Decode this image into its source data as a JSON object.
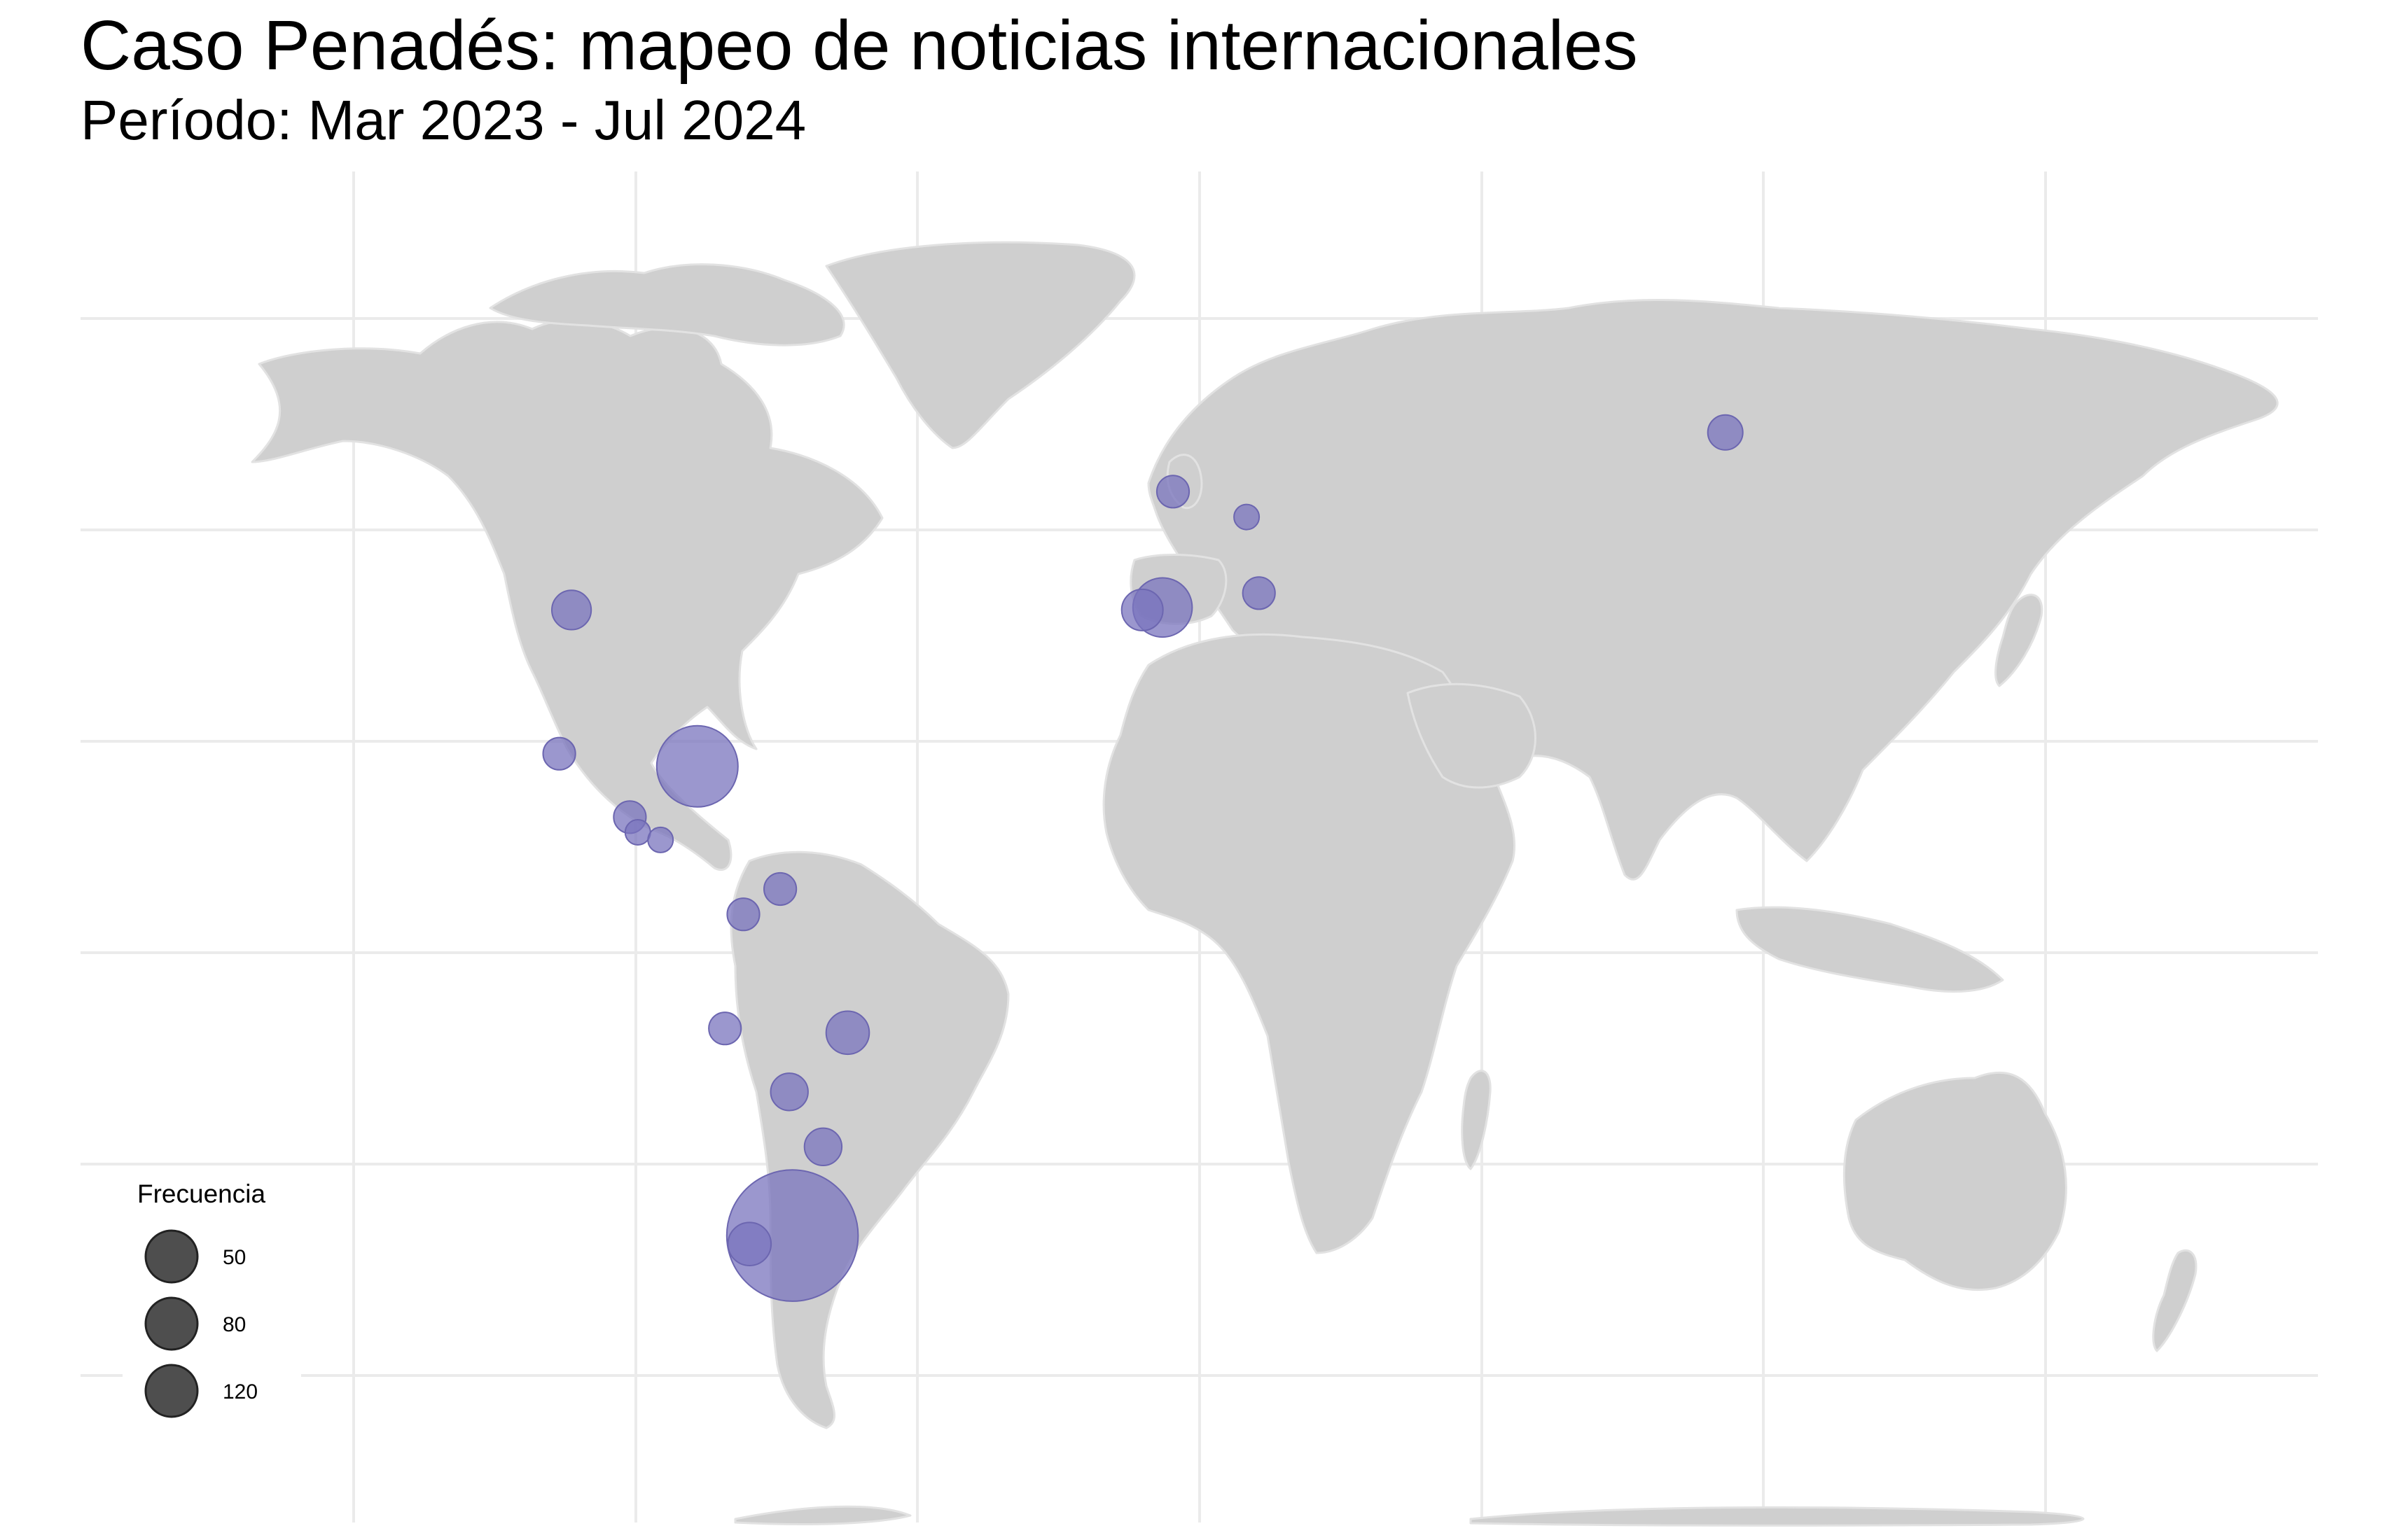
{
  "header": {
    "title": "Caso Penadés: mapeo de noticias internacionales",
    "subtitle": "Período: Mar 2023 - Jul 2024"
  },
  "chart_data": {
    "type": "bubble-map",
    "projection": "equirectangular",
    "lon_range": [
      -180,
      180
    ],
    "lat_range": [
      -58,
      84
    ],
    "grid": true,
    "land_color": "#cfcfcf",
    "bubble_color": "#7a74bd",
    "points": [
      {
        "lon": -100,
        "lat": 40,
        "value": 6
      },
      {
        "lon": -102,
        "lat": 23,
        "value": 3
      },
      {
        "lon": -79.5,
        "lat": 21.5,
        "value": 45
      },
      {
        "lon": -90.5,
        "lat": 15.5,
        "value": 3
      },
      {
        "lon": -89.2,
        "lat": 13.7,
        "value": 1
      },
      {
        "lon": -85.5,
        "lat": 12.8,
        "value": 1
      },
      {
        "lon": -66,
        "lat": 7,
        "value": 3
      },
      {
        "lon": -72,
        "lat": 4,
        "value": 3
      },
      {
        "lon": -75,
        "lat": -9.5,
        "value": 3
      },
      {
        "lon": -55,
        "lat": -10,
        "value": 8
      },
      {
        "lon": -64.5,
        "lat": -17,
        "value": 5
      },
      {
        "lon": -59,
        "lat": -23.5,
        "value": 5
      },
      {
        "lon": -64,
        "lat": -34,
        "value": 140
      },
      {
        "lon": -71,
        "lat": -35,
        "value": 8
      },
      {
        "lon": -7,
        "lat": 40,
        "value": 7
      },
      {
        "lon": -3.7,
        "lat": 40.3,
        "value": 20
      },
      {
        "lon": -2,
        "lat": 54,
        "value": 3
      },
      {
        "lon": 10,
        "lat": 51,
        "value": 1
      },
      {
        "lon": 12,
        "lat": 42,
        "value": 3
      },
      {
        "lon": 88,
        "lat": 61,
        "value": 4
      }
    ],
    "legend": {
      "title": "Frecuencia",
      "position": "bottom-left",
      "entries": [
        {
          "label": "50",
          "value": 50
        },
        {
          "label": "80",
          "value": 80
        },
        {
          "label": "120",
          "value": 120
        }
      ]
    }
  }
}
